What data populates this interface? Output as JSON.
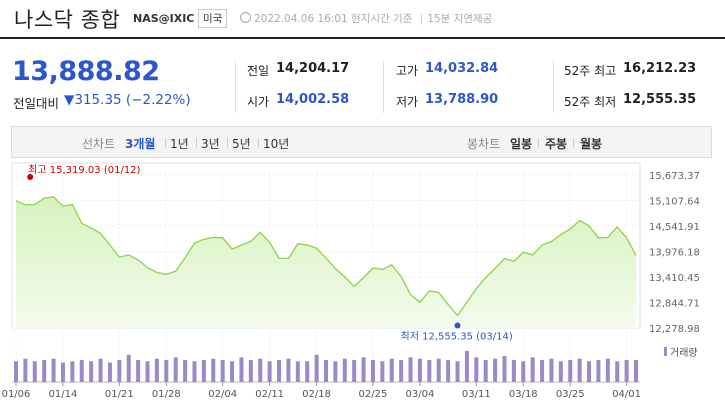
{
  "header": {
    "title": "나스닥 종합",
    "symbol": "NAS@IXIC",
    "market": "미국",
    "timestamp": "2022.04.06 16:01 현지시간 기준",
    "delay": "15분 지연제공"
  },
  "quote": {
    "price": "13,888.82",
    "change_label": "전일대비",
    "change": "▼315.35 (−2.22%)"
  },
  "stats": {
    "prev_close": {
      "label": "전일",
      "value": "14,204.17"
    },
    "open": {
      "label": "시가",
      "value": "14,002.58"
    },
    "high": {
      "label": "고가",
      "value": "14,032.84"
    },
    "low": {
      "label": "저가",
      "value": "13,788.90"
    },
    "high52": {
      "label": "52주 최고",
      "value": "16,212.23"
    },
    "low52": {
      "label": "52주 최저",
      "value": "12,555.35"
    }
  },
  "controls": {
    "period_label": "선차트",
    "periods": [
      "3개월",
      "1년",
      "3년",
      "5년",
      "10년"
    ],
    "active_period": "3개월",
    "candle_label": "봉차트",
    "candles": [
      "일봉",
      "주봉",
      "월봉"
    ]
  },
  "colors": {
    "up": "#c80000",
    "down": "#2d56c8",
    "line": "#8ed34a",
    "volume": "#9b8ac8"
  },
  "chart_data": {
    "type": "area",
    "yticks": [
      "15,673.37",
      "15,107.64",
      "14,541.91",
      "13,976.18",
      "13,410.45",
      "12,844.71",
      "12,278.98"
    ],
    "ylim": [
      12278.98,
      15673.37
    ],
    "xticks": [
      "01/06",
      "01/14",
      "01/21",
      "01/28",
      "02/04",
      "02/11",
      "02/18",
      "02/25",
      "03/04",
      "03/11",
      "03/18",
      "03/25",
      "04/01"
    ],
    "values": [
      15100,
      15010,
      15020,
      15160,
      15190,
      14980,
      15020,
      14600,
      14500,
      14380,
      14120,
      13850,
      13900,
      13790,
      13620,
      13510,
      13470,
      13540,
      13840,
      14160,
      14250,
      14290,
      14280,
      14030,
      14120,
      14200,
      14400,
      14180,
      13830,
      13820,
      14150,
      14120,
      14050,
      13830,
      13600,
      13410,
      13200,
      13400,
      13610,
      13580,
      13680,
      13420,
      13020,
      12850,
      13100,
      13070,
      12800,
      12555,
      12850,
      13150,
      13400,
      13600,
      13820,
      13760,
      13960,
      13900,
      14120,
      14200,
      14350,
      14480,
      14660,
      14550,
      14280,
      14290,
      14520,
      14280,
      13890
    ],
    "volume": [
      0.8,
      0.9,
      0.8,
      0.85,
      0.9,
      0.75,
      0.8,
      0.85,
      0.8,
      0.9,
      0.75,
      0.85,
      1.05,
      0.85,
      0.8,
      0.9,
      0.85,
      0.95,
      0.85,
      0.8,
      0.85,
      0.9,
      0.85,
      0.8,
      0.95,
      0.85,
      0.9,
      0.8,
      0.85,
      0.9,
      0.8,
      0.8,
      1.05,
      0.85,
      0.8,
      0.9,
      0.85,
      0.95,
      0.85,
      0.8,
      0.9,
      0.85,
      0.95,
      0.9,
      0.85,
      0.9,
      0.85,
      0.8,
      1.2,
      0.95,
      0.85,
      0.9,
      1.0,
      0.85,
      0.8,
      0.95,
      0.85,
      0.9,
      0.8,
      0.85,
      0.9,
      0.8,
      0.85,
      0.9,
      0.8,
      0.85,
      0.85
    ],
    "high_marker": {
      "label": "최고 15,319.03 (01/12)",
      "index": 3
    },
    "low_marker": {
      "label": "최저 12,555.35 (03/14)",
      "index": 47
    },
    "volume_legend": "거래량"
  }
}
